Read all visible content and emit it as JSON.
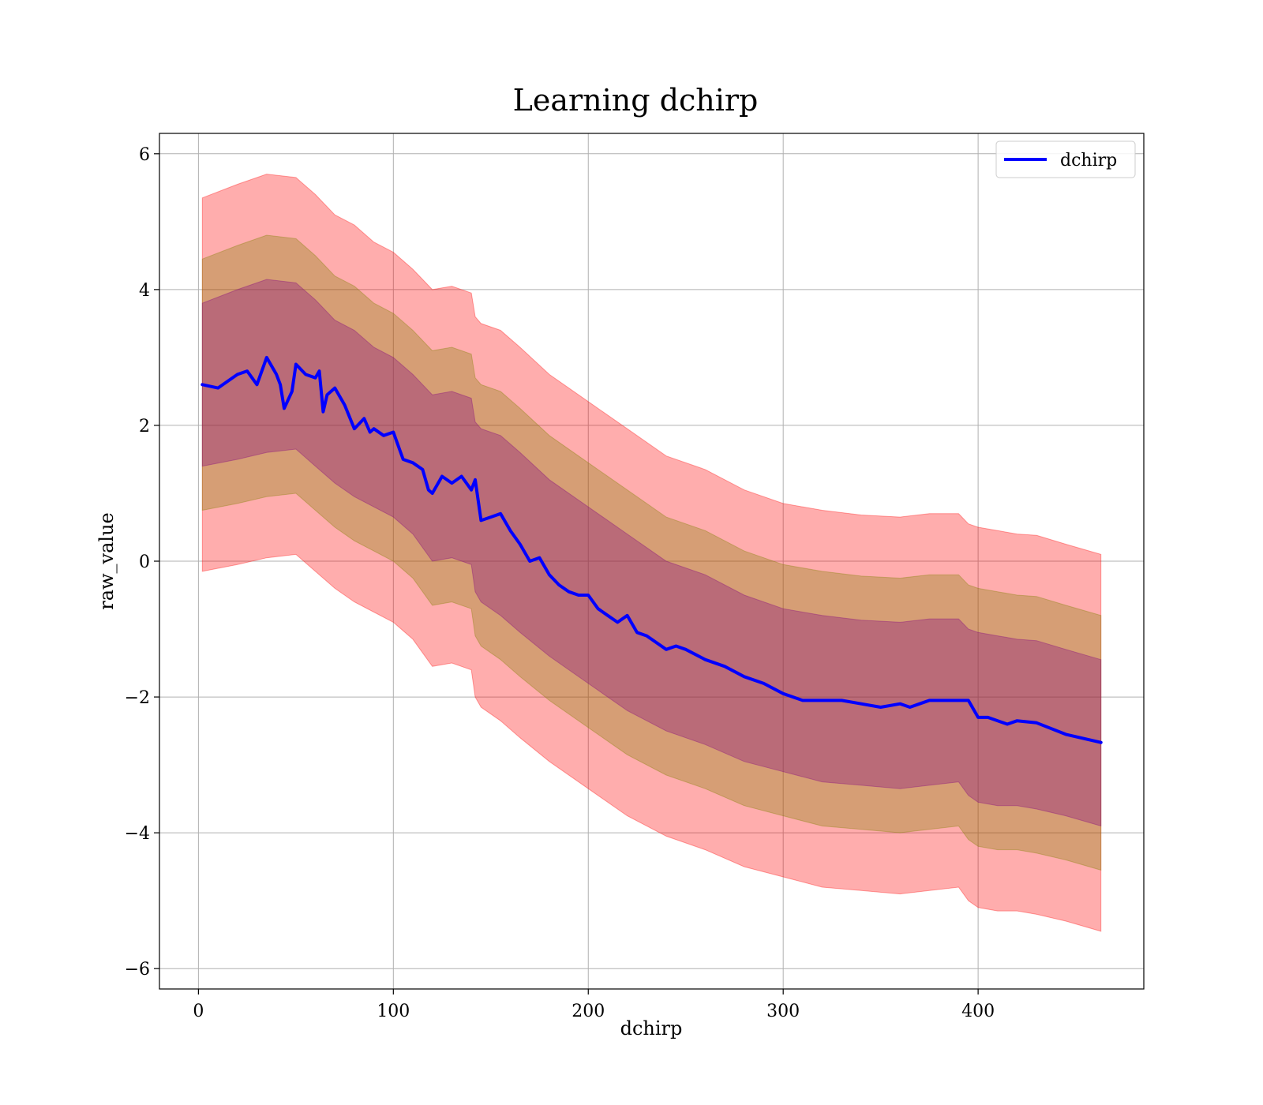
{
  "chart_data": {
    "type": "line",
    "title": "Learning dchirp",
    "xlabel": "dchirp",
    "ylabel": "raw_value",
    "xlim": [
      -20,
      485
    ],
    "ylim": [
      -6.3,
      6.3
    ],
    "xticks": [
      0,
      100,
      200,
      300,
      400
    ],
    "yticks": [
      -6,
      -4,
      -2,
      0,
      2,
      4,
      6
    ],
    "ytick_labels": [
      "−6",
      "−4",
      "−2",
      "0",
      "2",
      "4",
      "6"
    ],
    "grid": true,
    "legend": {
      "position": "top-right",
      "entries": [
        "dchirp"
      ]
    },
    "series": [
      {
        "name": "dchirp",
        "color": "#0000ff",
        "x": [
          2,
          10,
          20,
          25,
          30,
          35,
          40,
          42,
          44,
          48,
          50,
          55,
          60,
          62,
          64,
          66,
          70,
          75,
          80,
          85,
          88,
          90,
          95,
          100,
          105,
          110,
          115,
          118,
          120,
          125,
          130,
          135,
          140,
          142,
          145,
          150,
          155,
          160,
          165,
          170,
          175,
          180,
          185,
          190,
          195,
          200,
          205,
          210,
          215,
          220,
          225,
          230,
          240,
          245,
          250,
          260,
          270,
          280,
          290,
          300,
          310,
          320,
          330,
          340,
          350,
          360,
          365,
          370,
          375,
          380,
          390,
          395,
          400,
          405,
          415,
          420,
          430,
          445,
          463
        ],
        "values": [
          2.6,
          2.55,
          2.75,
          2.8,
          2.6,
          3.0,
          2.75,
          2.6,
          2.25,
          2.5,
          2.9,
          2.75,
          2.7,
          2.8,
          2.2,
          2.45,
          2.55,
          2.3,
          1.95,
          2.1,
          1.9,
          1.95,
          1.85,
          1.9,
          1.5,
          1.45,
          1.35,
          1.05,
          1.0,
          1.25,
          1.15,
          1.25,
          1.05,
          1.2,
          0.6,
          0.65,
          0.7,
          0.45,
          0.25,
          0.0,
          0.05,
          -0.2,
          -0.35,
          -0.45,
          -0.5,
          -0.5,
          -0.7,
          -0.8,
          -0.9,
          -0.8,
          -1.05,
          -1.1,
          -1.3,
          -1.25,
          -1.3,
          -1.45,
          -1.55,
          -1.7,
          -1.8,
          -1.95,
          -2.05,
          -2.05,
          -2.05,
          -2.1,
          -2.15,
          -2.1,
          -2.15,
          -2.1,
          -2.05,
          -2.05,
          -2.05,
          -2.05,
          -2.3,
          -2.3,
          -2.4,
          -2.35,
          -2.38,
          -2.55,
          -2.67
        ]
      }
    ],
    "bands": [
      {
        "color": "#ff0000",
        "opacity": 0.32,
        "x": [
          2,
          20,
          35,
          50,
          60,
          70,
          80,
          90,
          100,
          110,
          120,
          130,
          140,
          142,
          145,
          155,
          165,
          180,
          200,
          220,
          240,
          260,
          280,
          300,
          320,
          340,
          360,
          375,
          390,
          395,
          400,
          410,
          420,
          430,
          445,
          463
        ],
        "upper": [
          5.35,
          5.55,
          5.7,
          5.65,
          5.4,
          5.1,
          4.95,
          4.7,
          4.55,
          4.3,
          4.0,
          4.05,
          3.95,
          3.6,
          3.5,
          3.4,
          3.15,
          2.75,
          2.35,
          1.95,
          1.55,
          1.35,
          1.05,
          0.85,
          0.75,
          0.68,
          0.65,
          0.7,
          0.7,
          0.55,
          0.5,
          0.45,
          0.4,
          0.38,
          0.25,
          0.1
        ],
        "lower": [
          -0.15,
          -0.05,
          0.05,
          0.1,
          -0.15,
          -0.4,
          -0.6,
          -0.75,
          -0.9,
          -1.15,
          -1.55,
          -1.5,
          -1.6,
          -2.0,
          -2.15,
          -2.35,
          -2.6,
          -2.95,
          -3.35,
          -3.75,
          -4.05,
          -4.25,
          -4.5,
          -4.65,
          -4.8,
          -4.85,
          -4.9,
          -4.85,
          -4.8,
          -5.0,
          -5.1,
          -5.15,
          -5.15,
          -5.2,
          -5.3,
          -5.45
        ]
      },
      {
        "color": "#808000",
        "opacity": 0.32,
        "x": [
          2,
          20,
          35,
          50,
          60,
          70,
          80,
          90,
          100,
          110,
          120,
          130,
          140,
          142,
          145,
          155,
          165,
          180,
          200,
          220,
          240,
          260,
          280,
          300,
          320,
          340,
          360,
          375,
          390,
          395,
          400,
          410,
          420,
          430,
          445,
          463
        ],
        "upper": [
          4.45,
          4.65,
          4.8,
          4.75,
          4.5,
          4.2,
          4.05,
          3.8,
          3.65,
          3.4,
          3.1,
          3.15,
          3.05,
          2.7,
          2.6,
          2.5,
          2.25,
          1.85,
          1.45,
          1.05,
          0.65,
          0.45,
          0.15,
          -0.05,
          -0.15,
          -0.22,
          -0.25,
          -0.2,
          -0.2,
          -0.35,
          -0.4,
          -0.45,
          -0.5,
          -0.52,
          -0.65,
          -0.8
        ],
        "lower": [
          0.75,
          0.85,
          0.95,
          1.0,
          0.75,
          0.5,
          0.3,
          0.15,
          0.0,
          -0.25,
          -0.65,
          -0.6,
          -0.7,
          -1.1,
          -1.25,
          -1.45,
          -1.7,
          -2.05,
          -2.45,
          -2.85,
          -3.15,
          -3.35,
          -3.6,
          -3.75,
          -3.9,
          -3.95,
          -4.0,
          -3.95,
          -3.9,
          -4.1,
          -4.2,
          -4.25,
          -4.25,
          -4.3,
          -4.4,
          -4.55
        ]
      },
      {
        "color": "#800080",
        "opacity": 0.32,
        "x": [
          2,
          20,
          35,
          50,
          60,
          70,
          80,
          90,
          100,
          110,
          120,
          130,
          140,
          142,
          145,
          155,
          165,
          180,
          200,
          220,
          240,
          260,
          280,
          300,
          320,
          340,
          360,
          375,
          390,
          395,
          400,
          410,
          420,
          430,
          445,
          463
        ],
        "upper": [
          3.8,
          4.0,
          4.15,
          4.1,
          3.85,
          3.55,
          3.4,
          3.15,
          3.0,
          2.75,
          2.45,
          2.5,
          2.4,
          2.05,
          1.95,
          1.85,
          1.6,
          1.2,
          0.8,
          0.4,
          0.0,
          -0.2,
          -0.5,
          -0.7,
          -0.8,
          -0.87,
          -0.9,
          -0.85,
          -0.85,
          -1.0,
          -1.05,
          -1.1,
          -1.15,
          -1.17,
          -1.3,
          -1.45
        ],
        "lower": [
          1.4,
          1.5,
          1.6,
          1.65,
          1.4,
          1.15,
          0.95,
          0.8,
          0.65,
          0.4,
          0.0,
          0.05,
          -0.05,
          -0.45,
          -0.6,
          -0.8,
          -1.05,
          -1.4,
          -1.8,
          -2.2,
          -2.5,
          -2.7,
          -2.95,
          -3.1,
          -3.25,
          -3.3,
          -3.35,
          -3.3,
          -3.25,
          -3.45,
          -3.55,
          -3.6,
          -3.6,
          -3.65,
          -3.75,
          -3.9
        ]
      }
    ]
  }
}
